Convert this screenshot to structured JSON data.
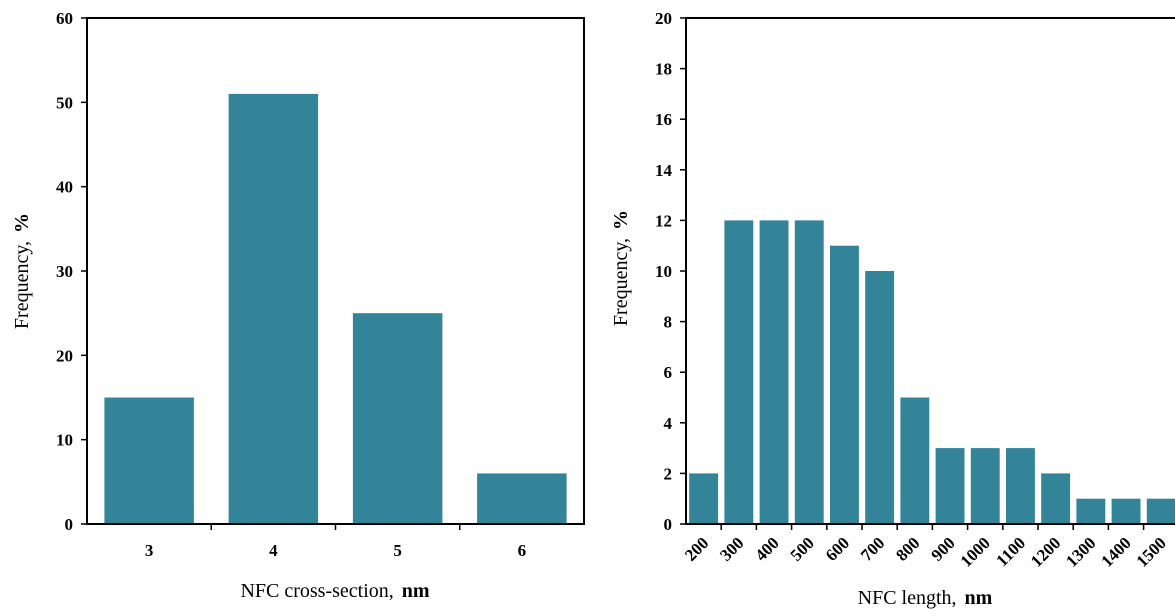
{
  "bar_color": "#348499",
  "chart_data": [
    {
      "type": "bar",
      "categories": [
        "3",
        "4",
        "5",
        "6"
      ],
      "values": [
        15,
        51,
        25,
        6
      ],
      "xlabel": "NFC cross-section,",
      "xlabel_unit": "nm",
      "ylabel": "Frequency,",
      "ylabel_unit": "%",
      "ylim": [
        0,
        60
      ],
      "yticks": [
        0,
        10,
        20,
        30,
        40,
        50,
        60
      ],
      "grid": false,
      "legend": "none"
    },
    {
      "type": "bar",
      "categories": [
        "200",
        "300",
        "400",
        "500",
        "600",
        "700",
        "800",
        "900",
        "1000",
        "1100",
        "1200",
        "1300",
        "1400",
        "1500"
      ],
      "values": [
        2,
        12,
        12,
        12,
        11,
        10,
        5,
        3,
        3,
        3,
        2,
        1,
        1,
        1
      ],
      "xlabel": "NFC length,",
      "xlabel_unit": "nm",
      "ylabel": "Frequency,",
      "ylabel_unit": "%",
      "ylim": [
        0,
        20
      ],
      "yticks": [
        0,
        2,
        4,
        6,
        8,
        10,
        12,
        14,
        16,
        18,
        20
      ],
      "grid": false,
      "legend": "none"
    }
  ]
}
